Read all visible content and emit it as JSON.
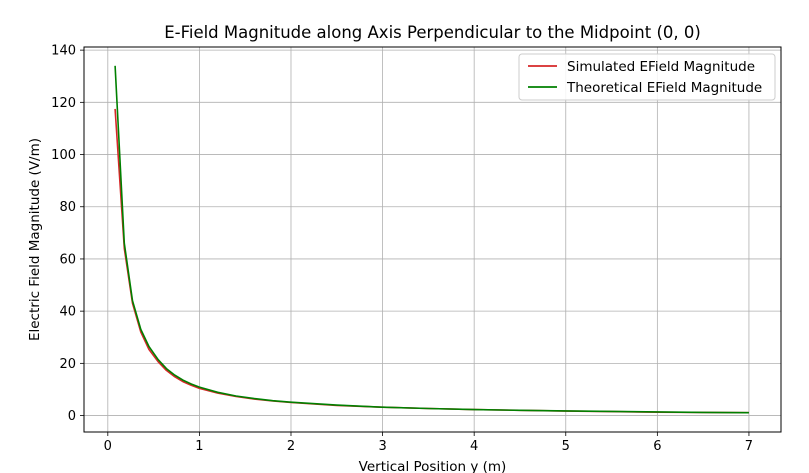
{
  "chart_data": {
    "type": "line",
    "title": "E-Field Magnitude along Axis Perpendicular to the Midpoint (0, 0)",
    "xlabel": "Vertical Position y (m)",
    "ylabel": "Electric Field Magnitude (V/m)",
    "xlim": [
      -0.26,
      7.35
    ],
    "ylim": [
      -6.3,
      141.2
    ],
    "xticks": [
      0,
      1,
      2,
      3,
      4,
      5,
      6,
      7
    ],
    "yticks": [
      0,
      20,
      40,
      60,
      80,
      100,
      120,
      140
    ],
    "grid": true,
    "legend_position": "top-right",
    "series": [
      {
        "name": "Simulated EField Magnitude",
        "color": "#d62728",
        "x": [
          0.08,
          0.18,
          0.27,
          0.36,
          0.45,
          0.55,
          0.64,
          0.73,
          0.82,
          0.91,
          1.0,
          1.2,
          1.4,
          1.6,
          1.8,
          2.0,
          2.5,
          3.0,
          3.5,
          4.0,
          4.5,
          5.0,
          5.5,
          6.0,
          6.5,
          7.0
        ],
        "y": [
          117.5,
          64.0,
          43.0,
          32.0,
          25.3,
          20.6,
          17.3,
          14.9,
          13.0,
          11.6,
          10.4,
          8.6,
          7.3,
          6.3,
          5.6,
          5.0,
          3.9,
          3.2,
          2.7,
          2.3,
          2.0,
          1.7,
          1.5,
          1.3,
          1.2,
          1.1
        ]
      },
      {
        "name": "Theoretical EField Magnitude",
        "color": "#008000",
        "x": [
          0.08,
          0.18,
          0.27,
          0.36,
          0.45,
          0.55,
          0.64,
          0.73,
          0.82,
          0.91,
          1.0,
          1.2,
          1.4,
          1.6,
          1.8,
          2.0,
          2.5,
          3.0,
          3.5,
          4.0,
          4.5,
          5.0,
          5.5,
          6.0,
          6.5,
          7.0
        ],
        "y": [
          134.0,
          66.0,
          44.0,
          33.0,
          26.4,
          21.4,
          18.0,
          15.5,
          13.6,
          12.1,
          10.9,
          8.9,
          7.5,
          6.5,
          5.7,
          5.1,
          4.0,
          3.2,
          2.7,
          2.3,
          2.0,
          1.8,
          1.6,
          1.4,
          1.2,
          1.1
        ]
      }
    ]
  }
}
